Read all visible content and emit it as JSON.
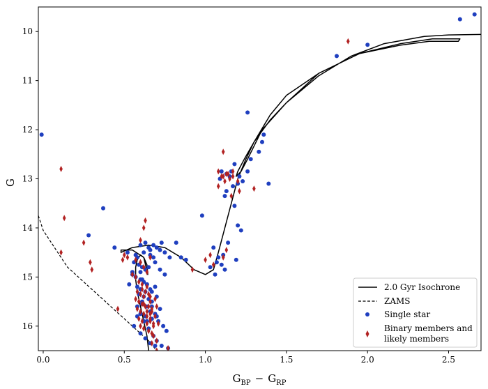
{
  "chart_data": {
    "type": "scatter",
    "title": "",
    "xlabel_main": "G",
    "xlabel_sub1": "BP",
    "xlabel_minus": "−",
    "xlabel_sub2": "RP",
    "ylabel": "G",
    "xlim": [
      -0.03,
      2.7
    ],
    "ylim": [
      16.5,
      9.5
    ],
    "y_inverted": true,
    "xticks": [
      0.0,
      0.5,
      1.0,
      1.5,
      2.0,
      2.5
    ],
    "xtick_labels": [
      "0.0",
      "0.5",
      "1.0",
      "1.5",
      "2.0",
      "2.5"
    ],
    "yticks": [
      10,
      11,
      12,
      13,
      14,
      15,
      16
    ],
    "ytick_labels": [
      "10",
      "11",
      "12",
      "13",
      "14",
      "15",
      "16"
    ],
    "grid": false,
    "legend_position": "bottom-right",
    "legend": [
      {
        "label": "2.0 Gyr Isochrone",
        "style": "solid-line"
      },
      {
        "label": "ZAMS",
        "style": "dashed-line"
      },
      {
        "label": "Single star",
        "style": "blue-circle"
      },
      {
        "label_line1": "Binary members and",
        "label_line2": "likely members",
        "style": "red-diamond"
      }
    ],
    "colors": {
      "single": "#1f3fbf",
      "binary": "#b22222",
      "line": "#000000"
    },
    "series": [
      {
        "name": "2.0 Gyr Isochrone",
        "kind": "line",
        "x": [
          0.65,
          0.64,
          0.62,
          0.6,
          0.58,
          0.57,
          0.57,
          0.58,
          0.6,
          0.62,
          0.64,
          0.645,
          0.62,
          0.55,
          0.48,
          0.48,
          0.55,
          0.65,
          0.75,
          0.85,
          0.93,
          1.0,
          1.05,
          1.08,
          1.12,
          1.16,
          1.2,
          1.25,
          1.3,
          1.4,
          1.5,
          1.7,
          1.95,
          2.2,
          2.4,
          2.57,
          2.56,
          2.38,
          2.2,
          1.95,
          1.7,
          1.5,
          1.4,
          1.3,
          1.24,
          1.2,
          1.19,
          1.22,
          1.26,
          1.35,
          1.5,
          1.7,
          1.9,
          2.1,
          2.35,
          2.5,
          2.7
        ],
        "y": [
          16.5,
          16.2,
          15.9,
          15.6,
          15.3,
          15.05,
          14.8,
          14.65,
          14.55,
          14.6,
          14.75,
          14.95,
          14.6,
          14.45,
          14.45,
          14.5,
          14.4,
          14.35,
          14.4,
          14.6,
          14.85,
          14.95,
          14.85,
          14.5,
          14.0,
          13.5,
          13.0,
          12.6,
          12.25,
          11.7,
          11.3,
          10.85,
          10.45,
          10.25,
          10.15,
          10.15,
          10.2,
          10.2,
          10.28,
          10.45,
          10.85,
          11.45,
          11.8,
          12.25,
          12.6,
          12.85,
          12.95,
          12.85,
          12.6,
          12.0,
          11.45,
          10.9,
          10.5,
          10.25,
          10.1,
          10.07,
          10.06
        ]
      },
      {
        "name": "ZAMS",
        "kind": "dashed-line",
        "x": [
          -0.03,
          0.0,
          0.05,
          0.1,
          0.15,
          0.2,
          0.25,
          0.3,
          0.35,
          0.4,
          0.45,
          0.5,
          0.55,
          0.6,
          0.65,
          0.7
        ],
        "y": [
          13.75,
          14.05,
          14.3,
          14.55,
          14.8,
          14.95,
          15.1,
          15.25,
          15.4,
          15.55,
          15.7,
          15.85,
          16.0,
          16.15,
          16.3,
          16.5
        ]
      },
      {
        "name": "Single star",
        "kind": "points",
        "marker": "circle",
        "x": [
          -0.01,
          0.37,
          0.28,
          0.44,
          0.52,
          0.57,
          0.58,
          0.56,
          0.59,
          0.61,
          0.6,
          0.63,
          0.65,
          0.68,
          0.7,
          0.73,
          0.75,
          0.78,
          0.55,
          0.57,
          0.6,
          0.62,
          0.64,
          0.58,
          0.6,
          0.63,
          0.66,
          0.69,
          0.59,
          0.62,
          0.65,
          0.67,
          0.7,
          0.61,
          0.64,
          0.66,
          0.69,
          0.72,
          0.63,
          0.67,
          0.71,
          0.74,
          0.76,
          0.68,
          0.58,
          0.6,
          0.62,
          0.65,
          0.6,
          0.63,
          0.66,
          0.69,
          0.61,
          0.64,
          0.67,
          0.62,
          0.65,
          0.68,
          0.72,
          0.66,
          0.69,
          0.72,
          0.75,
          0.7,
          0.73,
          0.77,
          0.85,
          0.88,
          0.82,
          0.6,
          0.63,
          0.66,
          0.55,
          0.53,
          0.64,
          0.56,
          0.58,
          0.61,
          0.67,
          0.7,
          1.05,
          1.08,
          1.1,
          1.12,
          1.06,
          1.03,
          1.07,
          1.11,
          0.98,
          1.1,
          1.13,
          1.16,
          1.15,
          1.18,
          1.12,
          1.09,
          1.13,
          1.17,
          1.2,
          1.21,
          1.18,
          1.23,
          1.26,
          1.28,
          1.33,
          1.35,
          1.36,
          1.39,
          1.26,
          1.2,
          1.22,
          1.14,
          1.19,
          1.81,
          2.0,
          2.57,
          2.66
        ],
        "y": [
          12.1,
          13.6,
          14.15,
          14.4,
          14.5,
          14.55,
          14.6,
          14.7,
          14.75,
          14.8,
          14.9,
          14.85,
          14.8,
          14.6,
          14.4,
          14.3,
          14.5,
          14.6,
          14.95,
          15.0,
          15.05,
          15.1,
          15.15,
          15.2,
          15.25,
          15.3,
          15.25,
          15.2,
          15.35,
          15.4,
          15.45,
          15.5,
          15.4,
          15.55,
          15.6,
          15.7,
          15.75,
          15.65,
          15.8,
          15.85,
          15.9,
          16.0,
          16.1,
          16.2,
          15.6,
          15.75,
          15.9,
          16.05,
          16.15,
          16.25,
          16.35,
          16.4,
          15.05,
          15.15,
          15.3,
          14.5,
          14.4,
          14.35,
          14.45,
          14.55,
          14.7,
          14.85,
          14.95,
          16.3,
          16.4,
          16.45,
          14.6,
          14.65,
          14.3,
          14.35,
          14.3,
          14.45,
          14.9,
          15.15,
          15.9,
          16.0,
          15.8,
          15.5,
          15.6,
          15.8,
          14.4,
          14.6,
          14.75,
          14.85,
          14.95,
          14.8,
          14.7,
          14.55,
          13.75,
          12.85,
          12.9,
          12.85,
          12.95,
          12.7,
          13.35,
          13.0,
          13.25,
          13.15,
          13.1,
          12.95,
          13.55,
          13.05,
          12.85,
          12.6,
          12.45,
          12.25,
          12.1,
          13.1,
          11.65,
          13.95,
          14.05,
          14.3,
          14.65,
          10.5,
          10.27,
          9.75,
          9.65
        ]
      },
      {
        "name": "Binary members and likely members",
        "kind": "points",
        "marker": "diamond",
        "x": [
          0.11,
          0.13,
          0.11,
          0.25,
          0.29,
          0.3,
          0.46,
          0.52,
          0.6,
          0.62,
          0.63,
          0.6,
          0.57,
          0.59,
          0.61,
          0.64,
          0.58,
          0.6,
          0.62,
          0.65,
          0.57,
          0.59,
          0.61,
          0.63,
          0.66,
          0.58,
          0.6,
          0.62,
          0.64,
          0.67,
          0.59,
          0.61,
          0.64,
          0.66,
          0.6,
          0.62,
          0.65,
          0.68,
          0.61,
          0.63,
          0.66,
          0.69,
          0.62,
          0.65,
          0.67,
          0.7,
          0.64,
          0.66,
          0.69,
          0.66,
          0.68,
          0.71,
          0.68,
          0.7,
          0.77,
          0.64,
          0.62,
          0.6,
          0.5,
          0.49,
          0.55,
          0.66,
          0.67,
          0.92,
          1.0,
          1.05,
          1.08,
          1.1,
          1.12,
          1.11,
          1.13,
          1.15,
          1.17,
          1.08,
          1.11,
          1.14,
          1.17,
          1.2,
          1.13,
          1.16,
          1.11,
          1.21,
          1.3,
          1.03,
          1.88,
          0.57,
          0.67,
          0.7
        ],
        "y": [
          12.8,
          13.8,
          14.5,
          14.3,
          14.7,
          14.85,
          15.65,
          14.6,
          14.25,
          14.0,
          13.85,
          14.7,
          15.0,
          15.1,
          15.15,
          15.2,
          15.3,
          15.35,
          15.4,
          15.35,
          15.45,
          15.5,
          15.55,
          15.6,
          15.5,
          15.65,
          15.7,
          15.75,
          15.8,
          15.7,
          15.85,
          15.9,
          15.95,
          15.9,
          16.0,
          16.05,
          16.1,
          16.0,
          15.25,
          15.3,
          15.4,
          15.45,
          15.55,
          15.6,
          15.65,
          15.6,
          15.7,
          15.75,
          15.8,
          15.85,
          15.95,
          15.95,
          16.2,
          16.3,
          16.45,
          14.9,
          14.8,
          14.7,
          14.55,
          14.65,
          14.95,
          14.6,
          16.35,
          14.85,
          14.65,
          14.75,
          12.85,
          12.95,
          13.05,
          12.45,
          12.9,
          13.0,
          12.85,
          13.15,
          12.95,
          12.9,
          12.95,
          13.05,
          14.45,
          13.35,
          14.6,
          13.25,
          13.2,
          14.55,
          10.2,
          14.65,
          16.15,
          16.5
        ]
      }
    ]
  }
}
